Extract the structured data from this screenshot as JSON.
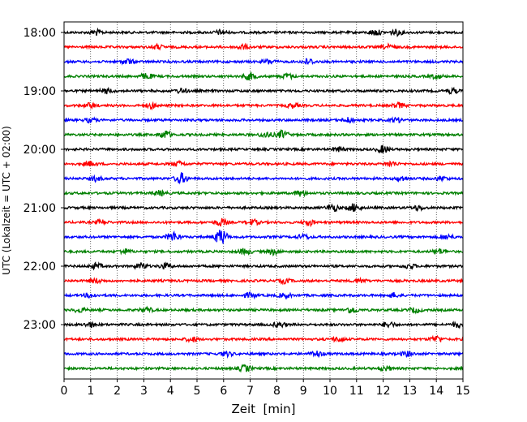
{
  "chart_data": {
    "type": "line",
    "title": "",
    "xlabel": "Zeit  [min]",
    "ylabel": "UTC (Lokalzeit = UTC + 02:00)",
    "xlim": [
      0,
      15
    ],
    "x_ticks": [
      "0",
      "1",
      "2",
      "3",
      "4",
      "5",
      "6",
      "7",
      "8",
      "9",
      "10",
      "11",
      "12",
      "13",
      "14",
      "15"
    ],
    "y_tick_labels": [
      "18:00",
      "19:00",
      "20:00",
      "21:00",
      "22:00",
      "23:00"
    ],
    "grid": "vertical dotted at each minute",
    "series_colors": [
      "#000000",
      "#ff0000",
      "#0000ff",
      "#008000"
    ],
    "traces": [
      {
        "time": "18:00",
        "color": "#000000",
        "events": [
          [
            1.2,
            1.5
          ],
          [
            5.9,
            1.3
          ],
          [
            11.7,
            1.6
          ],
          [
            12.5,
            1.5
          ]
        ]
      },
      {
        "time": "18:15",
        "color": "#ff0000",
        "events": [
          [
            3.5,
            1.2
          ],
          [
            6.7,
            1.3
          ],
          [
            12.2,
            1.2
          ]
        ]
      },
      {
        "time": "18:30",
        "color": "#0000ff",
        "events": [
          [
            2.4,
            1.4
          ],
          [
            7.7,
            1.3
          ],
          [
            9.2,
            1.6
          ]
        ]
      },
      {
        "time": "18:45",
        "color": "#008000",
        "events": [
          [
            3.1,
            1.6
          ],
          [
            7.0,
            2.0
          ],
          [
            8.4,
            1.5
          ],
          [
            14.0,
            1.3
          ]
        ]
      },
      {
        "time": "19:00",
        "color": "#000000",
        "events": [
          [
            1.6,
            1.3
          ],
          [
            4.4,
            1.2
          ],
          [
            14.6,
            1.3
          ]
        ]
      },
      {
        "time": "19:15",
        "color": "#ff0000",
        "events": [
          [
            1.0,
            1.3
          ],
          [
            3.3,
            1.4
          ],
          [
            8.6,
            1.2
          ],
          [
            12.6,
            1.4
          ]
        ]
      },
      {
        "time": "19:30",
        "color": "#0000ff",
        "events": [
          [
            1.0,
            1.2
          ],
          [
            10.7,
            1.4
          ],
          [
            12.5,
            1.2
          ]
        ]
      },
      {
        "time": "19:45",
        "color": "#008000",
        "events": [
          [
            3.8,
            2.2
          ],
          [
            7.6,
            1.6
          ],
          [
            8.2,
            2.2
          ]
        ]
      },
      {
        "time": "20:00",
        "color": "#000000",
        "events": [
          [
            12.0,
            2.0
          ],
          [
            10.3,
            1.2
          ]
        ]
      },
      {
        "time": "20:15",
        "color": "#ff0000",
        "events": [
          [
            1.0,
            1.2
          ],
          [
            4.3,
            1.4
          ],
          [
            12.3,
            1.4
          ]
        ]
      },
      {
        "time": "20:30",
        "color": "#0000ff",
        "events": [
          [
            1.2,
            1.3
          ],
          [
            4.4,
            3.0
          ],
          [
            12.7,
            1.3
          ],
          [
            14.2,
            1.2
          ]
        ]
      },
      {
        "time": "20:45",
        "color": "#008000",
        "events": [
          [
            3.6,
            1.3
          ],
          [
            8.9,
            1.5
          ]
        ]
      },
      {
        "time": "21:00",
        "color": "#000000",
        "events": [
          [
            10.1,
            2.0
          ],
          [
            10.9,
            2.2
          ],
          [
            13.3,
            1.3
          ]
        ]
      },
      {
        "time": "21:15",
        "color": "#ff0000",
        "events": [
          [
            1.4,
            1.3
          ],
          [
            5.9,
            2.0
          ],
          [
            7.1,
            1.5
          ],
          [
            9.2,
            1.6
          ]
        ]
      },
      {
        "time": "21:30",
        "color": "#0000ff",
        "events": [
          [
            4.1,
            2.8
          ],
          [
            5.9,
            4.5
          ],
          [
            9.0,
            1.3
          ],
          [
            14.4,
            1.3
          ]
        ]
      },
      {
        "time": "21:45",
        "color": "#008000",
        "events": [
          [
            2.3,
            1.3
          ],
          [
            6.8,
            1.6
          ],
          [
            7.9,
            1.6
          ],
          [
            14.1,
            1.4
          ]
        ]
      },
      {
        "time": "22:00",
        "color": "#000000",
        "events": [
          [
            1.2,
            1.5
          ],
          [
            2.9,
            1.6
          ],
          [
            3.8,
            1.5
          ],
          [
            13.0,
            1.3
          ]
        ]
      },
      {
        "time": "22:15",
        "color": "#ff0000",
        "events": [
          [
            1.2,
            1.2
          ],
          [
            8.3,
            1.2
          ],
          [
            11.1,
            1.2
          ]
        ]
      },
      {
        "time": "22:30",
        "color": "#0000ff",
        "events": [
          [
            1.0,
            1.2
          ],
          [
            7.0,
            1.3
          ],
          [
            8.3,
            1.3
          ],
          [
            12.4,
            1.2
          ]
        ]
      },
      {
        "time": "22:45",
        "color": "#008000",
        "events": [
          [
            0.6,
            1.2
          ],
          [
            3.1,
            1.3
          ],
          [
            10.8,
            1.8
          ],
          [
            13.2,
            1.3
          ]
        ]
      },
      {
        "time": "23:00",
        "color": "#000000",
        "events": [
          [
            1.0,
            1.3
          ],
          [
            8.1,
            1.4
          ],
          [
            12.2,
            1.5
          ],
          [
            14.8,
            1.4
          ]
        ]
      },
      {
        "time": "23:15",
        "color": "#ff0000",
        "events": [
          [
            4.8,
            1.3
          ],
          [
            10.3,
            1.2
          ],
          [
            14.0,
            1.8
          ]
        ]
      },
      {
        "time": "23:30",
        "color": "#0000ff",
        "events": [
          [
            6.1,
            1.3
          ],
          [
            9.5,
            1.6
          ],
          [
            12.9,
            1.3
          ]
        ]
      },
      {
        "time": "23:45",
        "color": "#008000",
        "events": [
          [
            6.8,
            1.8
          ],
          [
            12.1,
            1.2
          ]
        ]
      }
    ]
  }
}
